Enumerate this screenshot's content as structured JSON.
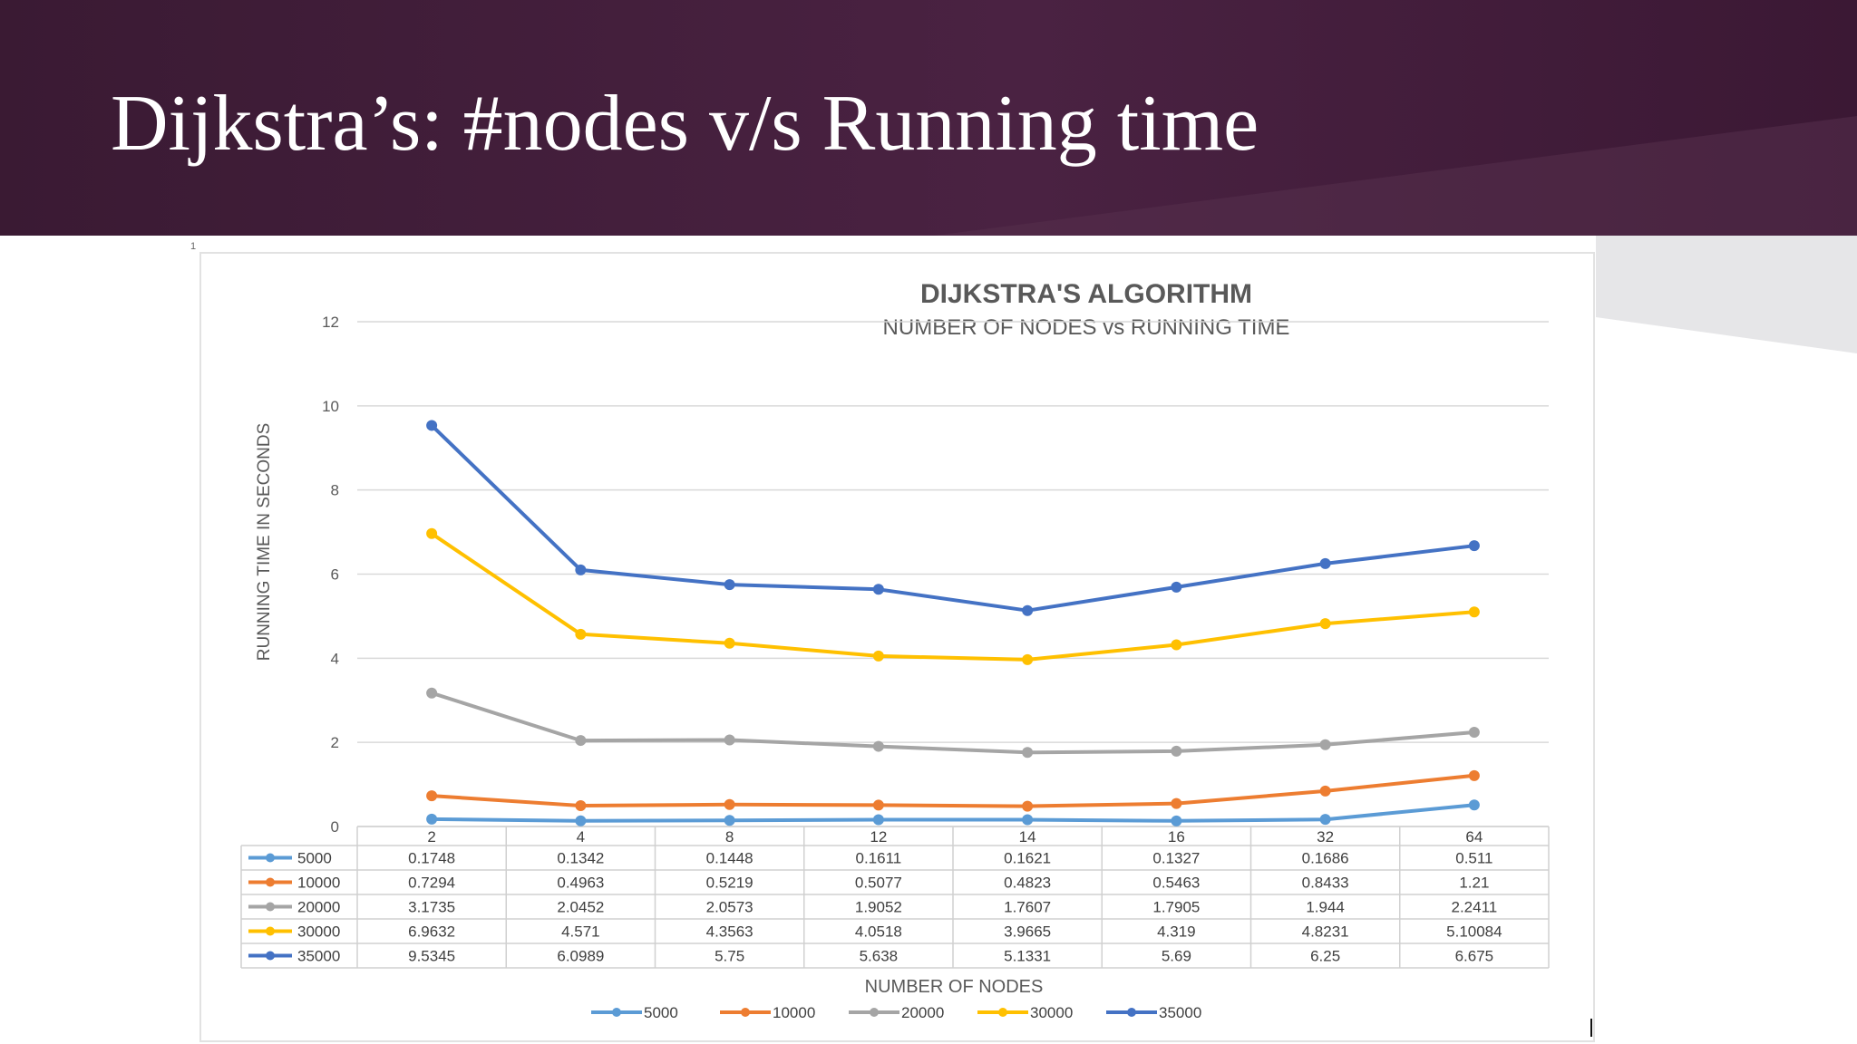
{
  "slide": {
    "title": "Dijkstra’s: #nodes v/s Running time",
    "corner_mark": "1"
  },
  "colors": {
    "banner": "#3e1c37",
    "series": [
      "#5b9bd5",
      "#ed7d31",
      "#a5a5a5",
      "#ffc000",
      "#4472c4"
    ]
  },
  "chart_data": {
    "type": "line",
    "title": "DIJKSTRA'S ALGORITHM",
    "subtitle": "NUMBER OF NODES vs RUNNING TIME",
    "xlabel": "NUMBER OF NODES",
    "ylabel": "RUNNING TIME IN SECONDS",
    "categories": [
      "2",
      "4",
      "8",
      "12",
      "14",
      "16",
      "32",
      "64"
    ],
    "ylim": [
      0,
      12
    ],
    "yticks": [
      0,
      2,
      4,
      6,
      8,
      10,
      12
    ],
    "grid": true,
    "legend_position": "bottom",
    "series": [
      {
        "name": "5000",
        "values": [
          0.1748,
          0.1342,
          0.1448,
          0.1611,
          0.1621,
          0.1327,
          0.1686,
          0.511
        ],
        "labels": [
          "0.1748",
          "0.1342",
          "0.1448",
          "0.1611",
          "0.1621",
          "0.1327",
          "0.1686",
          "0.511"
        ]
      },
      {
        "name": "10000",
        "values": [
          0.7294,
          0.4963,
          0.5219,
          0.5077,
          0.4823,
          0.5463,
          0.8433,
          1.21
        ],
        "labels": [
          "0.7294",
          "0.4963",
          "0.5219",
          "0.5077",
          "0.4823",
          "0.5463",
          "0.8433",
          "1.21"
        ]
      },
      {
        "name": "20000",
        "values": [
          3.1735,
          2.0452,
          2.0573,
          1.9052,
          1.7607,
          1.7905,
          1.944,
          2.2411
        ],
        "labels": [
          "3.1735",
          "2.0452",
          "2.0573",
          "1.9052",
          "1.7607",
          "1.7905",
          "1.944",
          "2.2411"
        ]
      },
      {
        "name": "30000",
        "values": [
          6.9632,
          4.571,
          4.3563,
          4.0518,
          3.9665,
          4.319,
          4.8231,
          5.10084
        ],
        "labels": [
          "6.9632",
          "4.571",
          "4.3563",
          "4.0518",
          "3.9665",
          "4.319",
          "4.8231",
          "5.10084"
        ]
      },
      {
        "name": "35000",
        "values": [
          9.5345,
          6.0989,
          5.75,
          5.638,
          5.1331,
          5.69,
          6.25,
          6.675
        ],
        "labels": [
          "9.5345",
          "6.0989",
          "5.75",
          "5.638",
          "5.1331",
          "5.69",
          "6.25",
          "6.675"
        ]
      }
    ]
  }
}
